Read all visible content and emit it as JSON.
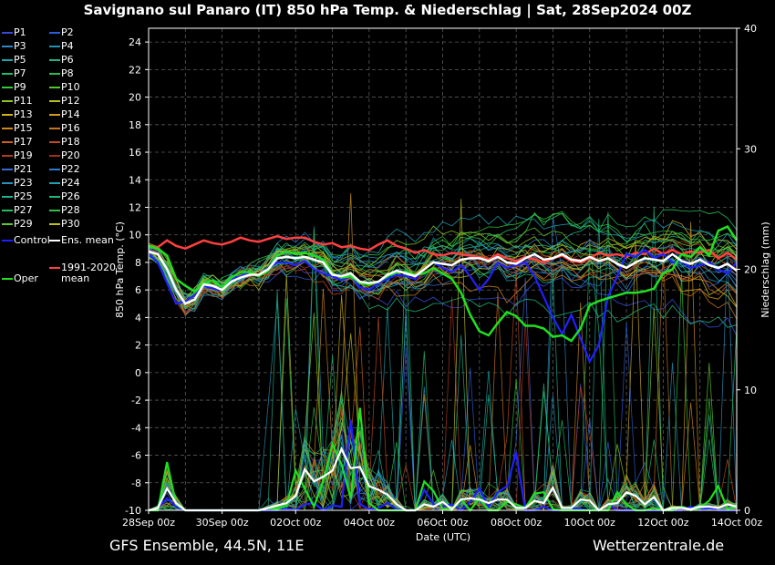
{
  "title": "Savignano sul Panaro  (IT)  850 hPa Temp. & Niederschlag | Sat, 28Sep2024 00Z",
  "footer_left": "GFS Ensemble, 44.5N, 11E",
  "footer_right": "Wetterzentrale.de",
  "colors": {
    "background": "#000000",
    "grid": "#5a5a5a",
    "axis": "#ffffff",
    "control": "#2020ff",
    "ens_mean": "#ffffff",
    "clim_mean": "#ff4040",
    "oper": "#20e020"
  },
  "legend": [
    {
      "label": "P1",
      "color": "#3a4bd8"
    },
    {
      "label": "P2",
      "color": "#2a5ed8"
    },
    {
      "label": "P3",
      "color": "#2c86c8"
    },
    {
      "label": "P4",
      "color": "#1f93b8"
    },
    {
      "label": "P5",
      "color": "#1ea3a8"
    },
    {
      "label": "P6",
      "color": "#1fb38a"
    },
    {
      "label": "P7",
      "color": "#1dbf6c"
    },
    {
      "label": "P8",
      "color": "#20c050"
    },
    {
      "label": "P9",
      "color": "#35c83a"
    },
    {
      "label": "P10",
      "color": "#52c828"
    },
    {
      "label": "P11",
      "color": "#8cc81e"
    },
    {
      "label": "P12",
      "color": "#b5c01e"
    },
    {
      "label": "P13",
      "color": "#d0b21e"
    },
    {
      "label": "P14",
      "color": "#d49a1e"
    },
    {
      "label": "P15",
      "color": "#d0861e"
    },
    {
      "label": "P16",
      "color": "#c8741e"
    },
    {
      "label": "P17",
      "color": "#c8601e"
    },
    {
      "label": "P18",
      "color": "#c24a1e"
    },
    {
      "label": "P19",
      "color": "#b23a1e"
    },
    {
      "label": "P20",
      "color": "#a0301e"
    },
    {
      "label": "P21",
      "color": "#3a6ad0"
    },
    {
      "label": "P22",
      "color": "#2c7ad0"
    },
    {
      "label": "P23",
      "color": "#2a90c0"
    },
    {
      "label": "P24",
      "color": "#20a0b0"
    },
    {
      "label": "P25",
      "color": "#1eb090"
    },
    {
      "label": "P26",
      "color": "#1eb878"
    },
    {
      "label": "P27",
      "color": "#22c060"
    },
    {
      "label": "P28",
      "color": "#30c048"
    },
    {
      "label": "P29",
      "color": "#60c830"
    },
    {
      "label": "P30",
      "color": "#c0c020"
    },
    {
      "label": "Control",
      "color": "#2020ff"
    },
    {
      "label": "Ens. mean",
      "color": "#ffffff"
    },
    {
      "label": "1991-2020 mean",
      "color": "#ff4040"
    },
    {
      "label": "Oper",
      "color": "#20e020"
    }
  ],
  "chart_data": {
    "type": "line",
    "xlabel": "Date (UTC)",
    "ylabel": "850 hPa Temp. (°C)",
    "ylabel_right": "Niederschlag (mm)",
    "xlim": [
      "2024-09-28T00",
      "2024-10-14T00"
    ],
    "xticks": [
      "28Sep 00z",
      "30Sep 00z",
      "02Oct 00z",
      "04Oct 00z",
      "06Oct 00z",
      "08Oct 00z",
      "10Oct 00z",
      "12Oct 00z",
      "14Oct 00z"
    ],
    "ylim": [
      -10,
      25
    ],
    "yticks": [
      -10,
      -8,
      -6,
      -4,
      -2,
      0,
      2,
      4,
      6,
      8,
      10,
      12,
      14,
      16,
      18,
      20,
      22,
      24
    ],
    "ylim_right": [
      0,
      40
    ],
    "yticks_right": [
      0,
      10,
      20,
      30,
      40
    ],
    "grid": true,
    "days": [
      0,
      0.25,
      0.5,
      0.75,
      1,
      1.25,
      1.5,
      1.75,
      2,
      2.25,
      2.5,
      2.75,
      3,
      3.25,
      3.5,
      3.75,
      4,
      4.25,
      4.5,
      4.75,
      5,
      5.25,
      5.5,
      5.75,
      6,
      6.25,
      6.5,
      6.75,
      7,
      7.25,
      7.5,
      7.75,
      8,
      8.25,
      8.5,
      8.75,
      9,
      9.25,
      9.5,
      9.75,
      10,
      10.25,
      10.5,
      10.75,
      11,
      11.25,
      11.5,
      11.75,
      12,
      12.25,
      12.5,
      12.75,
      13,
      13.25,
      13.5,
      13.75,
      14,
      14.25,
      14.5,
      14.75,
      15,
      15.25,
      15.5,
      15.75,
      16
    ],
    "series": [
      {
        "name": "1991-2020 mean",
        "role": "clim_mean",
        "axis": "left",
        "values": [
          9.2,
          9.1,
          9.6,
          9.2,
          9.0,
          9.3,
          9.6,
          9.4,
          9.3,
          9.5,
          9.8,
          9.6,
          9.5,
          9.7,
          9.9,
          9.7,
          9.8,
          9.8,
          9.5,
          9.3,
          9.4,
          9.1,
          9.2,
          9.0,
          8.9,
          9.3,
          9.6,
          9.2,
          9.0,
          8.7,
          8.9,
          8.6,
          8.5,
          8.7,
          8.6,
          8.5,
          8.4,
          8.2,
          8.6,
          8.3,
          8.1,
          8.4,
          8.2,
          8.0,
          8.3,
          8.5,
          8.1,
          8.0,
          8.3,
          8.7,
          8.5,
          8.6,
          8.4,
          8.7,
          8.6,
          9.0,
          8.6,
          8.9,
          8.6,
          8.8,
          8.7,
          8.9,
          8.3,
          8.7,
          8.2
        ]
      },
      {
        "name": "Ens. mean",
        "role": "ens_mean",
        "axis": "left",
        "values": [
          8.8,
          8.6,
          7.5,
          6.0,
          5.0,
          5.3,
          6.4,
          6.3,
          6.0,
          6.6,
          6.9,
          7.1,
          7.1,
          7.5,
          8.3,
          8.4,
          8.3,
          8.4,
          8.2,
          8.0,
          7.1,
          7.0,
          7.2,
          6.6,
          6.5,
          6.6,
          7.1,
          7.4,
          7.2,
          7.0,
          7.5,
          8.0,
          7.9,
          7.8,
          8.2,
          8.3,
          8.3,
          8.1,
          8.4,
          8.0,
          7.9,
          8.3,
          8.6,
          8.2,
          8.3,
          8.6,
          8.2,
          8.1,
          8.4,
          8.1,
          8.3,
          7.9,
          7.6,
          8.0,
          8.3,
          8.2,
          8.1,
          8.6,
          8.1,
          7.9,
          8.2,
          7.8,
          7.6,
          7.9,
          7.4
        ]
      },
      {
        "name": "Control",
        "role": "control",
        "axis": "left",
        "values": [
          8.6,
          8.0,
          6.5,
          5.0,
          5.2,
          5.6,
          6.3,
          6.1,
          6.0,
          6.8,
          7.0,
          7.3,
          7.0,
          7.6,
          8.0,
          8.0,
          7.8,
          8.1,
          7.5,
          7.2,
          7.0,
          6.7,
          7.0,
          6.2,
          6.0,
          6.5,
          6.8,
          7.1,
          7.0,
          6.8,
          7.5,
          8.0,
          7.6,
          7.3,
          7.8,
          7.0,
          6.0,
          6.8,
          8.0,
          7.6,
          7.8,
          8.0,
          7.0,
          5.5,
          4.0,
          2.8,
          4.2,
          2.5,
          0.8,
          2.0,
          5.5,
          7.0,
          8.6,
          8.4,
          8.9,
          8.3,
          8.6,
          8.0,
          8.1,
          7.6,
          7.8,
          8.0,
          7.5,
          7.2,
          8.0
        ]
      },
      {
        "name": "Oper",
        "role": "oper",
        "axis": "left",
        "values": [
          9.2,
          9.0,
          8.5,
          6.8,
          6.3,
          5.9,
          6.5,
          6.7,
          6.2,
          6.9,
          7.3,
          7.3,
          7.0,
          7.4,
          8.5,
          8.8,
          8.6,
          8.7,
          8.5,
          8.2,
          7.2,
          6.9,
          7.0,
          6.5,
          6.4,
          6.6,
          7.0,
          7.3,
          7.3,
          7.1,
          7.2,
          7.6,
          7.2,
          6.8,
          5.8,
          4.2,
          3.0,
          2.7,
          3.6,
          4.4,
          4.1,
          3.4,
          3.4,
          3.2,
          2.6,
          2.7,
          2.3,
          3.2,
          4.9,
          5.2,
          5.4,
          5.6,
          5.8,
          5.8,
          5.9,
          6.1,
          7.2,
          7.5,
          8.6,
          8.4,
          9.1,
          8.5,
          10.3,
          10.6,
          9.6
        ]
      },
      {
        "name": "Ens. mean precip",
        "role": "ens_mean_precip",
        "axis": "right",
        "values": [
          0.0,
          0.2,
          1.8,
          0.6,
          0.0,
          0.0,
          0.0,
          0.0,
          0.0,
          0.0,
          0.0,
          0.0,
          0.0,
          0.2,
          0.4,
          0.6,
          1.2,
          3.4,
          2.4,
          2.8,
          3.3,
          5.1,
          3.5,
          3.6,
          2.0,
          1.7,
          1.3,
          0.5,
          0.0,
          0.0,
          0.5,
          0.3,
          0.7,
          0.1,
          0.9,
          1.0,
          0.9,
          0.6,
          0.9,
          0.9,
          0.2,
          0.2,
          0.8,
          0.6,
          1.9,
          0.2,
          0.2,
          0.9,
          0.8,
          0.0,
          0.5,
          0.6,
          1.5,
          1.2,
          0.5,
          1.1,
          0.0,
          0.2,
          0.2,
          0.1,
          0.3,
          0.3,
          0.2,
          0.5,
          0.3
        ]
      },
      {
        "name": "Control precip",
        "role": "control_precip",
        "axis": "right",
        "values": [
          0.0,
          0.2,
          1.0,
          0.3,
          0.0,
          0.0,
          0.0,
          0.0,
          0.0,
          0.0,
          0.0,
          0.0,
          0.0,
          0.0,
          0.0,
          0.1,
          0.0,
          0.5,
          0.6,
          0.0,
          0.4,
          0.3,
          7.5,
          0.5,
          0.1,
          0.2,
          0.6,
          0.1,
          0.0,
          0.0,
          1.7,
          0.5,
          0.3,
          0.5,
          0.0,
          0.7,
          1.8,
          0.3,
          1.5,
          2.0,
          4.8,
          0.0,
          0.0,
          0.3,
          0.0,
          0.0,
          0.2,
          0.1,
          0.0,
          0.0,
          0.5,
          0.0,
          0.0,
          0.0,
          0.0,
          0.0,
          0.0,
          0.0,
          0.0,
          0.3,
          0.0,
          0.2,
          0.0,
          0.0,
          0.0
        ]
      },
      {
        "name": "Oper precip",
        "role": "oper_precip",
        "axis": "right",
        "values": [
          0.0,
          0.0,
          4.0,
          0.5,
          0.0,
          0.0,
          0.0,
          0.0,
          0.0,
          0.0,
          0.0,
          0.0,
          0.0,
          0.2,
          0.1,
          0.4,
          3.3,
          1.8,
          0.3,
          2.4,
          5.5,
          3.8,
          1.0,
          8.5,
          0.6,
          0.0,
          0.0,
          0.0,
          0.0,
          0.0,
          2.4,
          1.6,
          0.1,
          0.0,
          0.9,
          0.0,
          1.0,
          0.0,
          0.0,
          0.7,
          0.5,
          0.2,
          1.4,
          1.5,
          0.1,
          0.0,
          0.0,
          0.0,
          0.0,
          0.0,
          0.0,
          1.5,
          0.5,
          0.0,
          0.0,
          0.2,
          0.0,
          0.0,
          0.3,
          0.0,
          0.2,
          0.8,
          2.0,
          0.1,
          0.3
        ]
      }
    ]
  }
}
